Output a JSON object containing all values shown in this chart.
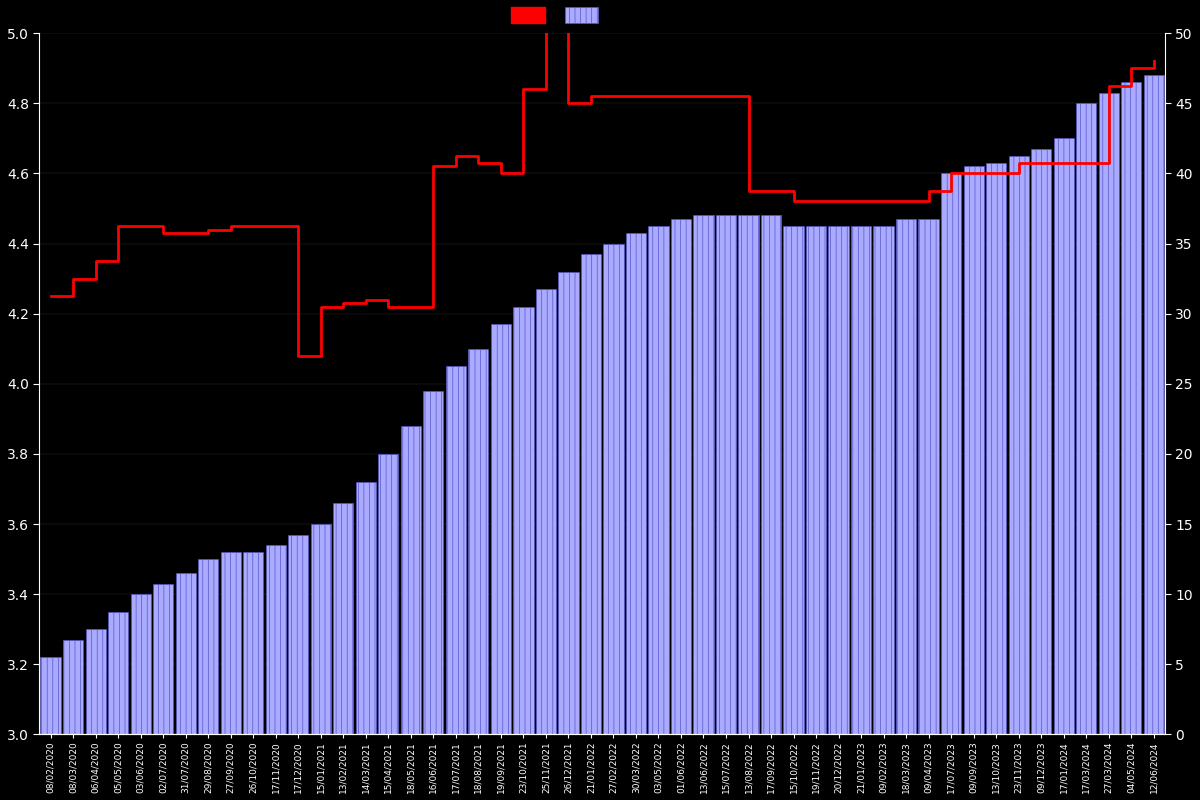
{
  "background_color": "#000000",
  "left_ylim": [
    3.0,
    5.0
  ],
  "right_ylim": [
    0,
    50
  ],
  "left_yticks": [
    3.0,
    3.2,
    3.4,
    3.6,
    3.8,
    4.0,
    4.2,
    4.4,
    4.6,
    4.8,
    5.0
  ],
  "right_yticks": [
    0,
    5,
    10,
    15,
    20,
    25,
    30,
    35,
    40,
    45,
    50
  ],
  "bar_facecolor": "#aaaaff",
  "bar_edgecolor": "#5555cc",
  "bar_hatch_color": "#5555cc",
  "line_color": "#ff0000",
  "text_color": "#ffffff",
  "grid_color": "#333333",
  "dates": [
    "08/02/2020",
    "08/03/2020",
    "06/04/2020",
    "05/05/2020",
    "03/06/2020",
    "02/07/2020",
    "31/07/2020",
    "29/08/2020",
    "27/09/2020",
    "26/10/2020",
    "17/11/2020",
    "17/12/2020",
    "15/01/2021",
    "13/02/2021",
    "14/03/2021",
    "15/04/2021",
    "18/05/2021",
    "16/06/2021",
    "17/07/2021",
    "18/08/2021",
    "19/09/2021",
    "23/10/2021",
    "25/11/2021",
    "26/12/2021",
    "21/01/2022",
    "27/02/2022",
    "30/03/2022",
    "03/05/2022",
    "01/06/2022",
    "13/06/2022",
    "15/07/2022",
    "13/08/2022",
    "17/09/2022",
    "15/10/2022",
    "19/11/2022",
    "20/12/2022",
    "21/01/2023",
    "09/02/2023",
    "18/03/2023",
    "09/04/2023",
    "17/07/2023",
    "09/09/2023",
    "13/10/2023",
    "23/11/2023",
    "09/12/2023",
    "17/01/2024",
    "17/03/2024",
    "27/03/2024",
    "04/05/2024",
    "12/06/2024"
  ],
  "avg_ratings": [
    3.22,
    3.27,
    3.3,
    3.35,
    3.4,
    3.43,
    3.46,
    3.5,
    3.52,
    3.52,
    3.54,
    3.57,
    3.6,
    3.66,
    3.72,
    3.8,
    3.88,
    3.98,
    4.05,
    4.1,
    4.17,
    4.22,
    4.27,
    4.32,
    4.37,
    4.4,
    4.43,
    4.45,
    4.47,
    4.48,
    4.48,
    4.48,
    4.48,
    4.45,
    4.45,
    4.45,
    4.45,
    4.45,
    4.47,
    4.47,
    4.6,
    4.62,
    4.63,
    4.65,
    4.67,
    4.7,
    4.8,
    4.83,
    4.86,
    4.88
  ],
  "current_ratings": [
    4.25,
    4.3,
    4.35,
    4.45,
    4.45,
    4.43,
    4.43,
    4.44,
    4.45,
    4.45,
    4.45,
    4.08,
    4.22,
    4.23,
    4.24,
    4.22,
    4.22,
    4.62,
    4.65,
    4.63,
    4.6,
    4.84,
    5.02,
    4.8,
    4.82,
    4.82,
    4.82,
    4.82,
    4.82,
    4.82,
    4.82,
    4.55,
    4.55,
    4.52,
    4.52,
    4.52,
    4.52,
    4.52,
    4.52,
    4.55,
    4.6,
    4.6,
    4.6,
    4.63,
    4.63,
    4.63,
    4.63,
    4.85,
    4.9,
    4.92
  ],
  "figsize": [
    12.0,
    8.0
  ],
  "dpi": 100
}
